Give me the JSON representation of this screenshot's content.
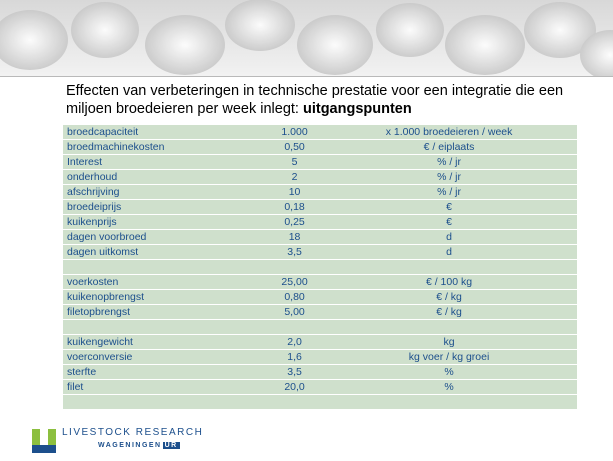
{
  "title": {
    "text": "Effecten van verbeteringen in technische prestatie voor een integratie die een miljoen broedeieren per week inlegt: ",
    "emphasis": "uitgangspunten"
  },
  "table": {
    "groups": [
      [
        [
          "broedcapaciteit",
          "1.000",
          "x 1.000 broedeieren / week"
        ],
        [
          "broedmachinekosten",
          "0,50",
          "€ / eiplaats"
        ],
        [
          "Interest",
          "5",
          "% / jr"
        ],
        [
          "onderhoud",
          "2",
          "% / jr"
        ],
        [
          "afschrijving",
          "10",
          "% / jr"
        ],
        [
          "broedeiprijs",
          "0,18",
          "€"
        ],
        [
          "kuikenprijs",
          "0,25",
          "€"
        ],
        [
          "dagen voorbroed",
          "18",
          "d"
        ],
        [
          "dagen uitkomst",
          "3,5",
          "d"
        ]
      ],
      [
        [
          "voerkosten",
          "25,00",
          "€ / 100 kg"
        ],
        [
          "kuikenopbrengst",
          "0,80",
          "€ / kg"
        ],
        [
          "filetopbrengst",
          "5,00",
          "€ / kg"
        ]
      ],
      [
        [
          "kuikengewicht",
          "2,0",
          "kg"
        ],
        [
          "voerconversie",
          "1,6",
          "kg voer / kg groei"
        ],
        [
          "sterfte",
          "3,5",
          "%"
        ],
        [
          "filet",
          "20,0",
          "%"
        ]
      ]
    ]
  },
  "logo": {
    "name": "LIVESTOCK RESEARCH",
    "org": "WAGENINGEN",
    "badge": "UR"
  }
}
